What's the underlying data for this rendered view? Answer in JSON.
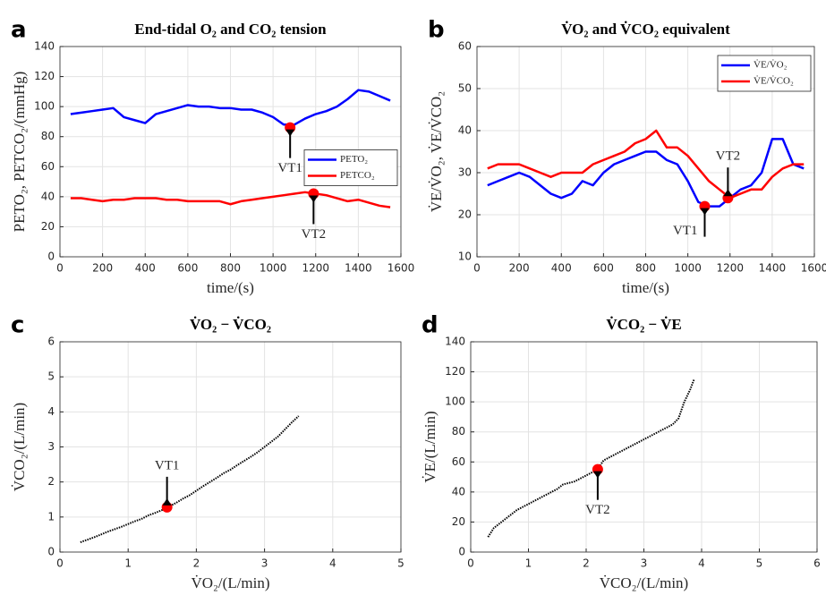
{
  "chart_data": [
    {
      "type": "line",
      "panel": "a",
      "title": "End-tidal O₂ and CO₂ tension",
      "xlabel": "time/(s)",
      "ylabel": "PETO₂, PETCO₂/(mmHg)",
      "xlim": [
        0,
        1600
      ],
      "xticks": [
        0,
        200,
        400,
        600,
        800,
        1000,
        1200,
        1400,
        1600
      ],
      "ylim": [
        0,
        140
      ],
      "yticks": [
        0,
        20,
        40,
        60,
        80,
        100,
        120,
        140
      ],
      "grid": true,
      "legend": "east",
      "x": [
        50,
        100,
        150,
        200,
        250,
        300,
        350,
        400,
        450,
        500,
        550,
        600,
        650,
        700,
        750,
        800,
        850,
        900,
        950,
        1000,
        1050,
        1100,
        1150,
        1200,
        1250,
        1300,
        1350,
        1400,
        1450,
        1500,
        1550
      ],
      "series": [
        {
          "name": "PETO₂",
          "color": "#0000ff",
          "values": [
            95,
            96,
            97,
            98,
            99,
            93,
            91,
            89,
            95,
            97,
            99,
            101,
            100,
            100,
            99,
            99,
            98,
            98,
            96,
            93,
            88,
            88,
            92,
            95,
            97,
            100,
            105,
            111,
            110,
            107,
            104
          ]
        },
        {
          "name": "PETCO₂",
          "color": "#ff0000",
          "values": [
            39,
            39,
            38,
            37,
            38,
            38,
            39,
            39,
            39,
            38,
            38,
            37,
            37,
            37,
            37,
            35,
            37,
            38,
            39,
            40,
            41,
            42,
            43,
            42,
            41,
            39,
            37,
            38,
            36,
            34,
            33
          ]
        }
      ],
      "markers": [
        {
          "label": "VT1",
          "x": 1080,
          "y": 86,
          "position": "below"
        },
        {
          "label": "VT2",
          "x": 1190,
          "y": 42,
          "position": "below"
        }
      ]
    },
    {
      "type": "line",
      "panel": "b",
      "title": "V̇O₂ and V̇CO₂ equivalent",
      "xlabel": "time/(s)",
      "ylabel": "V̇E/V̇O₂, V̇E/V̇CO₂",
      "xlim": [
        0,
        1600
      ],
      "xticks": [
        0,
        200,
        400,
        600,
        800,
        1000,
        1200,
        1400,
        1600
      ],
      "ylim": [
        10,
        60
      ],
      "yticks": [
        10,
        20,
        30,
        40,
        50,
        60
      ],
      "grid": true,
      "legend": "northeast",
      "x": [
        50,
        100,
        150,
        200,
        250,
        300,
        350,
        400,
        450,
        500,
        550,
        600,
        650,
        700,
        750,
        800,
        850,
        900,
        950,
        1000,
        1050,
        1100,
        1150,
        1200,
        1250,
        1300,
        1350,
        1400,
        1450,
        1500,
        1550
      ],
      "series": [
        {
          "name": "V̇E/V̇O₂",
          "color": "#0000ff",
          "values": [
            27,
            28,
            29,
            30,
            29,
            27,
            25,
            24,
            25,
            28,
            27,
            30,
            32,
            33,
            34,
            35,
            35,
            33,
            32,
            28,
            23,
            22,
            22,
            24,
            26,
            27,
            30,
            38,
            38,
            32,
            31
          ]
        },
        {
          "name": "V̇E/V̇CO₂",
          "color": "#ff0000",
          "values": [
            31,
            32,
            32,
            32,
            31,
            30,
            29,
            30,
            30,
            30,
            32,
            33,
            34,
            35,
            37,
            38,
            40,
            36,
            36,
            34,
            31,
            28,
            26,
            24,
            25,
            26,
            26,
            29,
            31,
            32,
            32
          ]
        }
      ],
      "markers": [
        {
          "label": "VT1",
          "x": 1080,
          "y": 22,
          "position": "below-left"
        },
        {
          "label": "VT2",
          "x": 1190,
          "y": 24,
          "position": "above"
        }
      ]
    },
    {
      "type": "scatter",
      "panel": "c",
      "title": "V̇O₂ − V̇CO₂",
      "xlabel": "V̇O₂/(L/min)",
      "ylabel": "V̇CO₂/(L/min)",
      "xlim": [
        0,
        5
      ],
      "xticks": [
        0,
        1,
        2,
        3,
        4,
        5
      ],
      "ylim": [
        0,
        6
      ],
      "yticks": [
        0,
        1,
        2,
        3,
        4,
        5,
        6
      ],
      "grid": true,
      "color": "#000000",
      "x": [
        0.3,
        0.4,
        0.5,
        0.6,
        0.7,
        0.8,
        0.9,
        1.0,
        1.1,
        1.2,
        1.3,
        1.4,
        1.5,
        1.6,
        1.7,
        1.8,
        1.9,
        2.0,
        2.1,
        2.2,
        2.3,
        2.4,
        2.5,
        2.6,
        2.7,
        2.8,
        2.9,
        3.0,
        3.1,
        3.2,
        3.3,
        3.4,
        3.5
      ],
      "values": [
        0.28,
        0.35,
        0.42,
        0.5,
        0.58,
        0.65,
        0.72,
        0.8,
        0.88,
        0.95,
        1.05,
        1.12,
        1.2,
        1.3,
        1.4,
        1.52,
        1.62,
        1.75,
        1.88,
        2.0,
        2.12,
        2.25,
        2.35,
        2.48,
        2.6,
        2.72,
        2.85,
        3.0,
        3.15,
        3.3,
        3.5,
        3.7,
        3.88
      ],
      "markers": [
        {
          "label": "VT1",
          "x": 1.57,
          "y": 1.28,
          "position": "above"
        }
      ]
    },
    {
      "type": "scatter",
      "panel": "d",
      "title": "V̇CO₂ − V̇E",
      "xlabel": "V̇CO₂/(L/min)",
      "ylabel": "V̇E/(L/min)",
      "xlim": [
        0,
        6
      ],
      "xticks": [
        0,
        1,
        2,
        3,
        4,
        5,
        6
      ],
      "ylim": [
        0,
        140
      ],
      "yticks": [
        0,
        20,
        40,
        60,
        80,
        100,
        120,
        140
      ],
      "grid": true,
      "color": "#000000",
      "x": [
        0.3,
        0.4,
        0.5,
        0.6,
        0.7,
        0.8,
        0.9,
        1.0,
        1.1,
        1.2,
        1.3,
        1.4,
        1.5,
        1.6,
        1.7,
        1.8,
        1.9,
        2.0,
        2.1,
        2.2,
        2.3,
        2.4,
        2.5,
        2.6,
        2.7,
        2.8,
        2.9,
        3.0,
        3.1,
        3.2,
        3.3,
        3.4,
        3.5,
        3.6,
        3.7,
        3.8,
        3.87
      ],
      "values": [
        10,
        16,
        19,
        22,
        25,
        28,
        30,
        32,
        34,
        36,
        38,
        40,
        42,
        45,
        46,
        47,
        49,
        51,
        53,
        55,
        61,
        63,
        65,
        67,
        69,
        71,
        73,
        75,
        77,
        79,
        81,
        83,
        85,
        89,
        100,
        108,
        115
      ],
      "markers": [
        {
          "label": "VT2",
          "x": 2.2,
          "y": 55,
          "position": "below"
        }
      ]
    }
  ]
}
